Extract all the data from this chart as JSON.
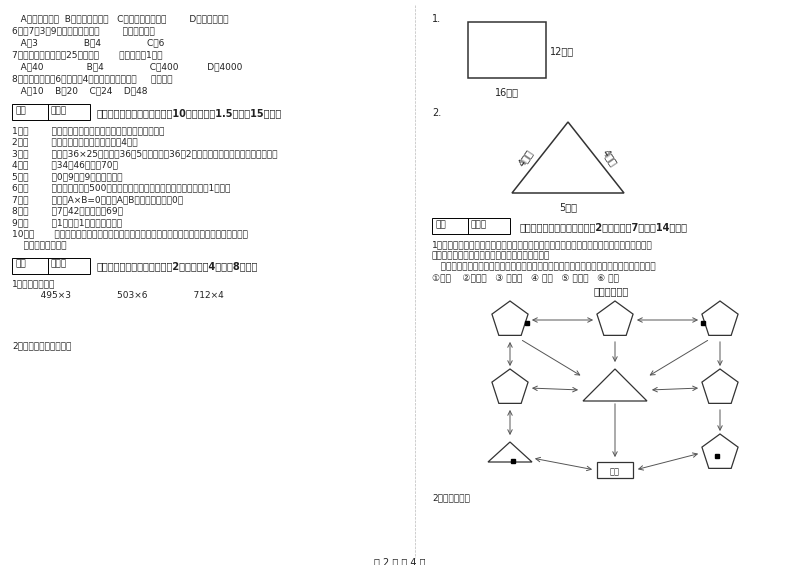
{
  "page_bg": "#ffffff",
  "section_a_lines": [
    "   A．一定，可能  B．可能，不可能   C．不可能，不可能        D．可能，可能",
    "6．用7、3、9三个数字可组成（        ）个三位数。",
    "   A．3                B．4                C．6",
    "7．平均每个同学体重25千克，（       ）名同学重1吨。",
    "   A．40               B．4                C．400          D．4000",
    "8．一个长方形长6厘米，宽4厘米，它的周长是（     ）厘米。",
    "   A．10    B．20    C．24    D．48"
  ],
  "score_box_label1": "得分",
  "score_box_label2": "评卷人",
  "section3_title": "三、仔细推敲，正确判断（共10小题，每题1.5分，共15分）。",
  "judge_items": [
    "1．（        ）所有的大月都是单月，所有的小月都是双月。",
    "2．（        ）正方形的周长是它的边长的4倍。",
    "3．（        ）计算36×25时，先把36和5相乘，再把36和2相乘，最后把两次乘得的结果相加。",
    "4．（        ）34与46的和是70。",
    "5．（        ）0．9里有9个十分之一。",
    "6．（        ）小明家离学校500米，他每天上学、回家，一个来回一共要走1千米。",
    "7．（        ）如果A×B=0，那么A和B中至少有一个是0。",
    "8．（        ）7个42相加的和是69。",
    "9．（        ）1吨棉与1吨棉花一样重。",
    "10．（       ）用同一条铁丝先围成一个最大的正方形，再围成一个最大的长方形，长方形和正",
    "    方形的周长相等。"
  ],
  "section4_title": "四、看清题目，细心计算（共2小题，每题4分，共8分）。",
  "calc_line1": "1．估算并计算。",
  "calc_line2": "   495×3                503×6                712×4",
  "calc_line3": "2．求下面图形的周长。",
  "right_item1_num": "1.",
  "rect_label_right": "12厘米",
  "rect_label_bottom": "16厘米",
  "right_item2_num": "2.",
  "tri_left_label": "4分米",
  "tri_right_label": "4分米",
  "tri_bottom_label": "5分米",
  "section5_title": "五、认真思考，综合能力（共2小题，每题7分，共14分）。",
  "section5_q1": "1．走进动物园大门，正北面是狮子山和熊猫馆，狮子山的东侧是飞禽馆，西侧是猴园，大象",
  "section5_q2": "馆和鱼馆的场地分别在动物园的东北角和西北角。",
  "section5_q3": "   根据小强的描述，请你把这些动物场馆所在的位置，在动物园的导游图上用序号表示出来。",
  "section5_legend": "①狮山    ②熊猫馆   ③ 飞禽馆   ④ 猴园   ⑤ 大象馆   ⑥ 鱼馆",
  "map_title": "动物园导游图",
  "door_label": "南门",
  "section5_q4": "2．动手操作。",
  "footer_text": "第 2 页 共 4 页"
}
